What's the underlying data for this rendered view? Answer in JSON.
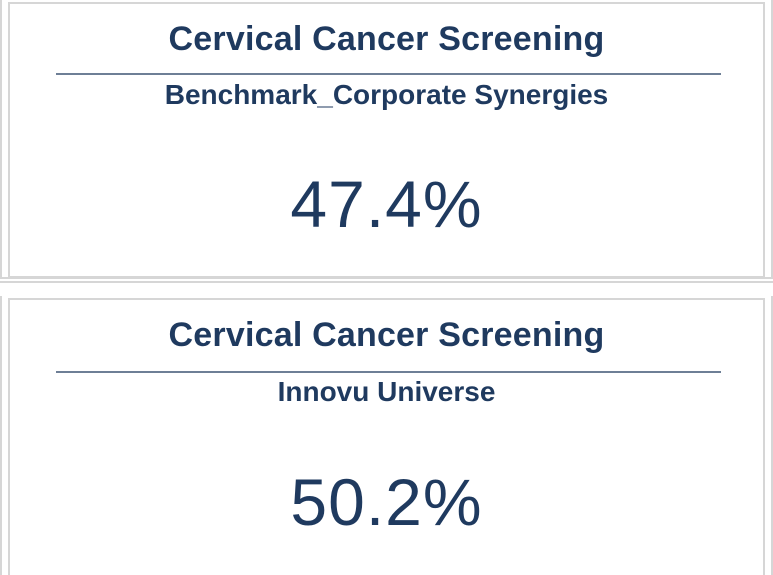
{
  "cards": [
    {
      "title": "Cervical Cancer Screening",
      "subtitle": "Benchmark_Corporate Synergies",
      "value": "47.4%"
    },
    {
      "title": "Cervical Cancer Screening",
      "subtitle": "Innovu Universe",
      "value": "50.2%"
    }
  ],
  "colors": {
    "text": "#1f3a5f",
    "rule": "#6e7f96",
    "border": "#d6d6d6",
    "background": "#ffffff"
  }
}
